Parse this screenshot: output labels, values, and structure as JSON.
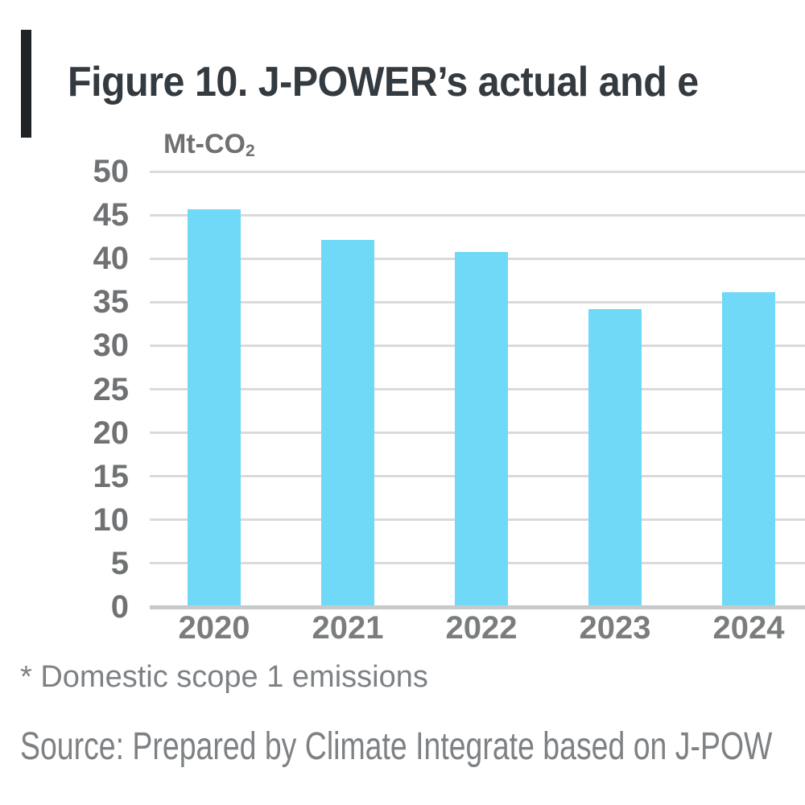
{
  "figure": {
    "title": "Figure 10. J-POWER’s actual and e",
    "title_color": "#333a40",
    "accent_bar_color": "#1f2326"
  },
  "chart_data": {
    "type": "bar",
    "title": "Figure 10. J-POWER’s actual and e",
    "unit_label": {
      "prefix": "Mt-CO",
      "subscript": "2"
    },
    "categories": [
      "2020",
      "2021",
      "2022",
      "2023",
      "2024"
    ],
    "values": [
      45.7,
      42.1,
      40.8,
      34.2,
      36.1
    ],
    "ylim": [
      0,
      50
    ],
    "ytick_step": 5,
    "yticks": [
      50,
      45,
      40,
      35,
      30,
      25,
      20,
      15,
      10,
      5,
      0
    ],
    "grid": "horizontal",
    "legend": "none",
    "bar_color": "#6fd9f7",
    "gridline_color": "#dadada",
    "axis_line_color": "#c7caca",
    "ytick_label_color": "#6f7173",
    "xtick_label_color": "#7a7c7e"
  },
  "footnote": {
    "text": "* Domestic scope 1 emissions"
  },
  "source": {
    "text": "Source: Prepared by Climate Integrate based on J-POW"
  }
}
